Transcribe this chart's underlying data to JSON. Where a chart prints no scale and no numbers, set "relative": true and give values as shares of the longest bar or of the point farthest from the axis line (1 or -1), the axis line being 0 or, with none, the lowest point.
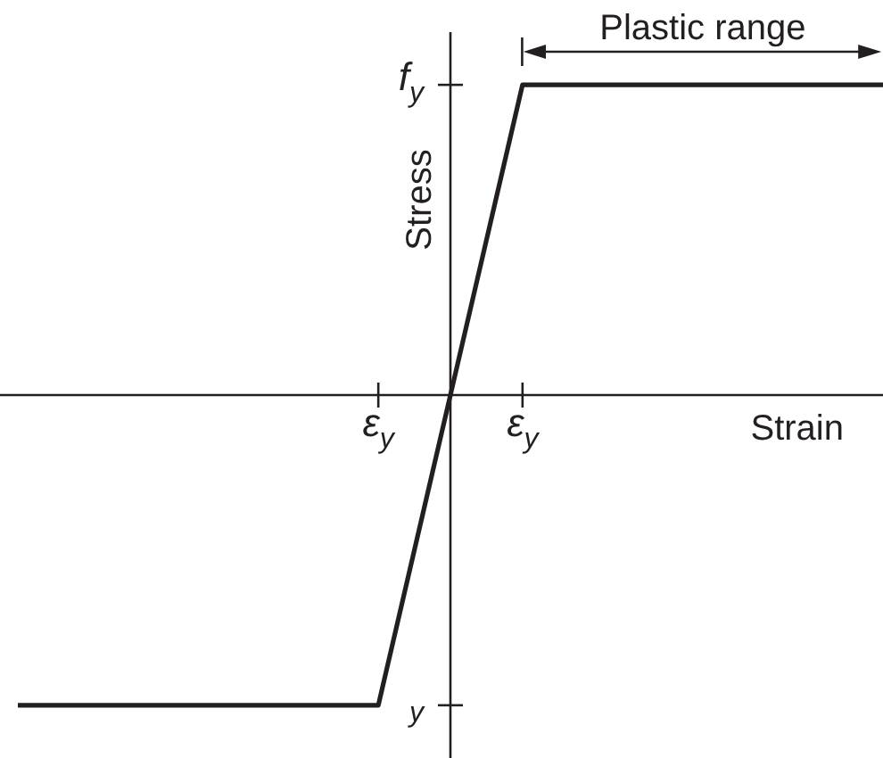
{
  "chart_data": {
    "type": "line",
    "relative": true,
    "xlabel": "Strain",
    "ylabel": "Stress",
    "annotations": [
      "f$_{y}$",
      "y",
      "Plastic range"
    ],
    "categories": [
      null,
      null,
      null,
      null,
      null,
      "ε$_{y}$",
      null,
      "ε$_{y}$",
      null,
      null,
      null,
      null,
      null
    ],
    "values": [
      -1,
      -1,
      -1,
      -1,
      -1,
      -1,
      0,
      1,
      1,
      1,
      1,
      1,
      1
    ],
    "color": "#231f20",
    "marker": "none"
  }
}
